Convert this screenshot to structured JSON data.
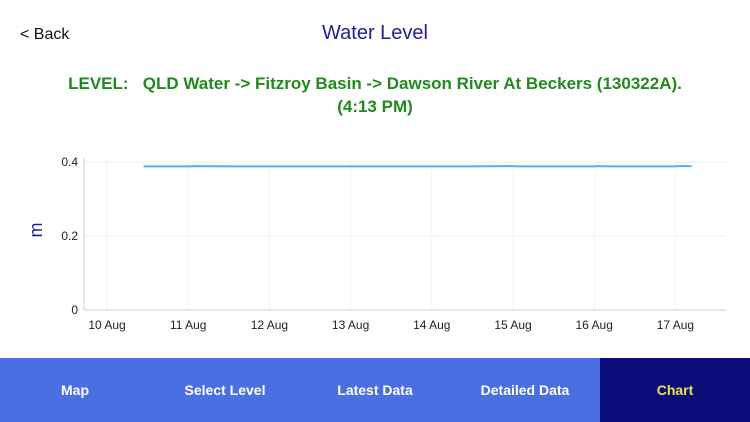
{
  "nav": {
    "back_label": "< Back",
    "title": "Water Level"
  },
  "level_heading": {
    "line1": "LEVEL:   QLD Water -> Fitzroy Basin -> Dawson River At Beckers (130322A).",
    "line2": "(4:13 PM)"
  },
  "chart_data": {
    "type": "line",
    "ylabel": "m",
    "ylim": [
      0,
      0.4
    ],
    "yticks": [
      0,
      0.2,
      0.4
    ],
    "ytick_labels": [
      "0",
      "0.2",
      "0.4"
    ],
    "xlim": [
      0,
      7.5
    ],
    "xtick_labels": [
      "10 Aug",
      "11 Aug",
      "12 Aug",
      "13 Aug",
      "14 Aug",
      "15 Aug",
      "16 Aug",
      "17 Aug"
    ],
    "grid": true,
    "line_color": "#45b6e6",
    "series": [
      {
        "x": [
          0.45,
          1.0,
          1.1,
          1.5,
          2.0,
          2.5,
          3.0,
          3.5,
          4.0,
          4.5,
          4.95,
          5.1,
          5.5,
          6.0,
          6.05,
          6.2,
          6.5,
          7.0,
          7.05,
          7.2
        ],
        "values": [
          0.388,
          0.388,
          0.389,
          0.388,
          0.388,
          0.388,
          0.388,
          0.388,
          0.388,
          0.388,
          0.389,
          0.388,
          0.388,
          0.388,
          0.389,
          0.388,
          0.388,
          0.388,
          0.389,
          0.389
        ]
      }
    ]
  },
  "tabs": [
    {
      "label": "Map",
      "active": false
    },
    {
      "label": "Select Level",
      "active": false
    },
    {
      "label": "Latest Data",
      "active": false
    },
    {
      "label": "Detailed Data",
      "active": false
    },
    {
      "label": "Chart",
      "active": true
    }
  ]
}
